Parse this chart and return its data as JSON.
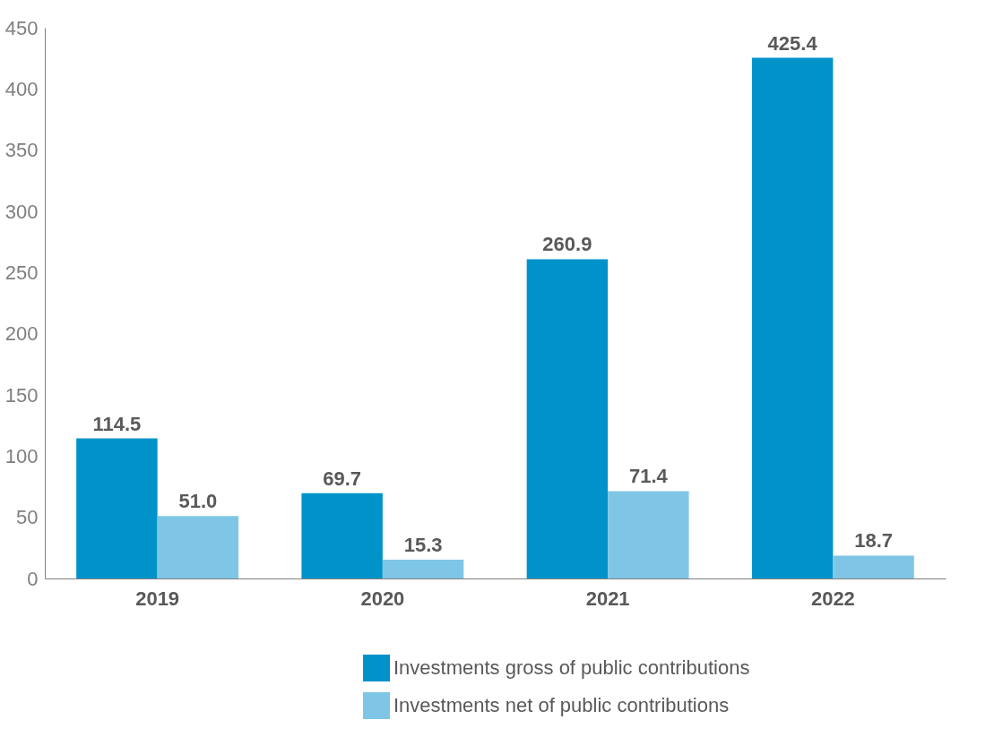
{
  "chart_data": {
    "type": "bar",
    "categories": [
      "2019",
      "2020",
      "2021",
      "2022"
    ],
    "series": [
      {
        "name": "Investments gross of public contributions",
        "color": "#0093c9",
        "values": [
          114.5,
          69.7,
          260.9,
          425.4
        ],
        "value_labels": [
          "114.5",
          "69.7",
          "260.9",
          "425.4"
        ]
      },
      {
        "name": "Investments net of public contributions",
        "color": "#7fc6e6",
        "values": [
          51.0,
          15.3,
          71.4,
          18.7
        ],
        "value_labels": [
          "51.0",
          "15.3",
          "71.4",
          "18.7"
        ]
      }
    ],
    "ylim": [
      0,
      450
    ],
    "yticks": [
      0,
      50,
      100,
      150,
      200,
      250,
      300,
      350,
      400,
      450
    ],
    "grid": false,
    "legend": "bottom"
  }
}
